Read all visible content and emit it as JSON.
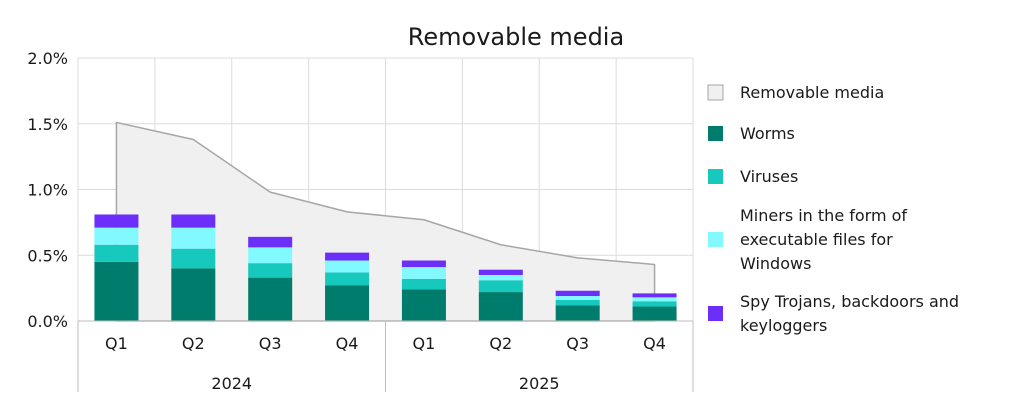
{
  "chart_data": {
    "type": "bar",
    "title": "Removable media",
    "xlabel": "",
    "ylabel": "",
    "y_ticks": [
      "0.0%",
      "0.5%",
      "1.0%",
      "1.5%",
      "2.0%"
    ],
    "ylim": [
      0,
      2.0
    ],
    "grid": true,
    "legend_position": "right",
    "categories": [
      "Q1",
      "Q2",
      "Q3",
      "Q4",
      "Q1",
      "Q2",
      "Q3",
      "Q4"
    ],
    "groups": [
      {
        "label": "2024",
        "quarters": [
          "Q1",
          "Q2",
          "Q3",
          "Q4"
        ]
      },
      {
        "label": "2025",
        "quarters": [
          "Q1",
          "Q2",
          "Q3",
          "Q4"
        ]
      }
    ],
    "area_series": {
      "name": "Removable media",
      "color": "#f0f0f0",
      "stroke": "#a6a6a6",
      "values": [
        1.51,
        1.38,
        0.98,
        0.83,
        0.77,
        0.58,
        0.48,
        0.43
      ]
    },
    "series": [
      {
        "name": "Worms",
        "color": "#007c6c",
        "values": [
          0.45,
          0.4,
          0.33,
          0.27,
          0.24,
          0.22,
          0.12,
          0.11
        ]
      },
      {
        "name": "Viruses",
        "color": "#17c9bd",
        "values": [
          0.13,
          0.15,
          0.11,
          0.1,
          0.08,
          0.09,
          0.04,
          0.04
        ]
      },
      {
        "name": "Miners in the form of executable files for Windows",
        "color": "#82f9ff",
        "values": [
          0.13,
          0.16,
          0.12,
          0.09,
          0.09,
          0.04,
          0.03,
          0.03
        ]
      },
      {
        "name": "Spy Trojans, backdoors and keyloggers",
        "color": "#6c2ffa",
        "values": [
          0.1,
          0.1,
          0.08,
          0.06,
          0.05,
          0.04,
          0.04,
          0.03
        ]
      }
    ]
  },
  "legend": {
    "items": [
      {
        "lines": [
          "Removable media"
        ],
        "color": "#f0f0f0",
        "stroke": "#a6a6a6"
      },
      {
        "lines": [
          "Worms"
        ],
        "color": "#007c6c",
        "stroke": "none"
      },
      {
        "lines": [
          "Viruses"
        ],
        "color": "#17c9bd",
        "stroke": "none"
      },
      {
        "lines": [
          "Miners in the form of",
          "executable files for",
          "Windows"
        ],
        "color": "#82f9ff",
        "stroke": "none"
      },
      {
        "lines": [
          "Spy Trojans, backdoors and",
          "keyloggers"
        ],
        "color": "#6c2ffa",
        "stroke": "none"
      }
    ]
  }
}
